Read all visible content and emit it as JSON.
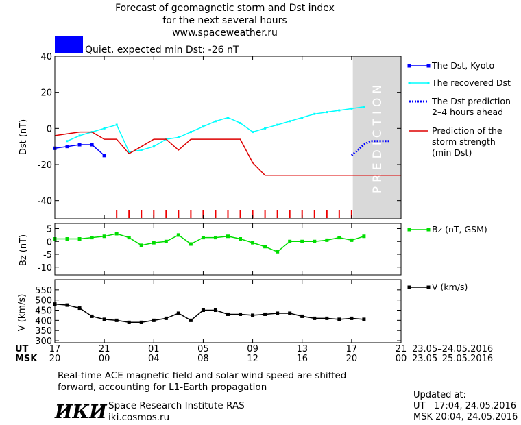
{
  "header": {
    "title_lines": [
      "Forecast of geomagnetic storm and Dst index",
      "for the next several hours",
      "www.spaceweather.ru"
    ],
    "status_color": "#0000ff",
    "status_text": "Quiet, expected min Dst: -26 nT"
  },
  "time_axis": {
    "ut_label": "UT",
    "msk_label": "MSK",
    "ut_ticks": [
      "17",
      "21",
      "01",
      "05",
      "09",
      "13",
      "17",
      "21"
    ],
    "msk_ticks": [
      "20",
      "00",
      "04",
      "08",
      "12",
      "16",
      "20",
      "00"
    ],
    "tick_hours": [
      0,
      4,
      8,
      12,
      16,
      20,
      24,
      28
    ],
    "x_range_hours": [
      0,
      28
    ],
    "ut_range_text": "23.05–24.05.2016",
    "msk_range_text": "23.05–25.05.2016"
  },
  "chart_data": [
    {
      "type": "line",
      "ylabel": "Dst (nT)",
      "ylim": [
        -50,
        40
      ],
      "yticks": [
        40,
        20,
        0,
        -20,
        -40
      ],
      "prediction_label": "PREDICTION",
      "prediction_range_hours": [
        24.1,
        28
      ],
      "storm_marker_hours": [
        5,
        6,
        7,
        8,
        9,
        10,
        11,
        12,
        13,
        14,
        15,
        16,
        17,
        18,
        19,
        20,
        21,
        22,
        23,
        24
      ],
      "series": [
        {
          "name": "The Dst, Kyoto",
          "color": "#0000ff",
          "style": "line-square",
          "x": [
            0,
            1,
            2,
            3,
            4
          ],
          "y": [
            -11,
            -10,
            -9,
            -9,
            -15
          ]
        },
        {
          "name": "The recovered Dst",
          "color": "#00ffff",
          "style": "line-dot",
          "x": [
            1,
            2,
            3,
            4,
            5,
            6,
            7,
            8,
            9,
            10,
            11,
            12,
            13,
            14,
            15,
            16,
            17,
            18,
            19,
            20,
            21,
            22,
            23,
            24,
            25
          ],
          "y": [
            -7,
            -4,
            -2,
            0,
            2,
            -13,
            -12,
            -10,
            -6,
            -5,
            -2,
            1,
            4,
            6,
            3,
            -2,
            0,
            2,
            4,
            6,
            8,
            9,
            10,
            11,
            12
          ]
        },
        {
          "name": "The Dst prediction 2–4 hours ahead",
          "color": "#0000ff",
          "style": "dotted",
          "x": [
            24,
            24.5,
            25,
            25.5,
            26,
            27
          ],
          "y": [
            -15,
            -12,
            -9,
            -7,
            -7,
            -7
          ]
        },
        {
          "name": "Prediction of the storm strength (min Dst)",
          "color": "#dd0000",
          "style": "line",
          "x": [
            0,
            1,
            2,
            3,
            4,
            5,
            6,
            7,
            8,
            9,
            10,
            11,
            12,
            13,
            14,
            15,
            16,
            17,
            18,
            19,
            20,
            21,
            22,
            23,
            24,
            25,
            26,
            27,
            28
          ],
          "y": [
            -4,
            -3,
            -2,
            -2,
            -6,
            -6,
            -14,
            -10,
            -6,
            -6,
            -12,
            -6,
            -6,
            -6,
            -6,
            -6,
            -19,
            -26,
            -26,
            -26,
            -26,
            -26,
            -26,
            -26,
            -26,
            -26,
            -26,
            -26,
            -26
          ]
        }
      ]
    },
    {
      "type": "line",
      "ylabel": "Bz (nT)",
      "ylim": [
        -13,
        7
      ],
      "yticks": [
        5,
        0,
        -5,
        -10
      ],
      "series": [
        {
          "name": "Bz (nT, GSM)",
          "color": "#00dd00",
          "style": "line-square",
          "x": [
            0,
            1,
            2,
            3,
            4,
            5,
            6,
            7,
            8,
            9,
            10,
            11,
            12,
            13,
            14,
            15,
            16,
            17,
            18,
            19,
            20,
            21,
            22,
            23,
            24,
            25
          ],
          "y": [
            1,
            1,
            1,
            1.5,
            2,
            3,
            1.5,
            -1.5,
            -0.5,
            0,
            2.5,
            -1,
            1.5,
            1.5,
            2,
            1,
            -0.5,
            -2,
            -4,
            0,
            0,
            0,
            0.5,
            1.5,
            0.5,
            2
          ]
        }
      ]
    },
    {
      "type": "line",
      "ylabel": "V (km/s)",
      "ylim": [
        290,
        600
      ],
      "yticks": [
        550,
        500,
        450,
        400,
        350,
        300
      ],
      "series": [
        {
          "name": "V (km/s)",
          "color": "#000000",
          "style": "line-square",
          "x": [
            0,
            1,
            2,
            3,
            4,
            5,
            6,
            7,
            8,
            9,
            10,
            11,
            12,
            13,
            14,
            15,
            16,
            17,
            18,
            19,
            20,
            21,
            22,
            23,
            24,
            25
          ],
          "y": [
            480,
            475,
            460,
            420,
            405,
            400,
            390,
            390,
            400,
            410,
            435,
            400,
            450,
            450,
            430,
            430,
            425,
            430,
            435,
            435,
            420,
            410,
            410,
            405,
            410,
            405
          ]
        }
      ]
    }
  ],
  "footer": {
    "note_lines": [
      "Real-time ACE magnetic field and solar wind speed are shifted",
      "forward, accounting for L1-Earth propagation"
    ],
    "logo_text": "ИКИ",
    "institute": "Space Research Institute RAS",
    "website": "iki.cosmos.ru",
    "updated_label": "Updated at:",
    "updated_ut": "UT   17:04, 24.05.2016",
    "updated_msk": "MSK 20:04, 24.05.2016"
  }
}
